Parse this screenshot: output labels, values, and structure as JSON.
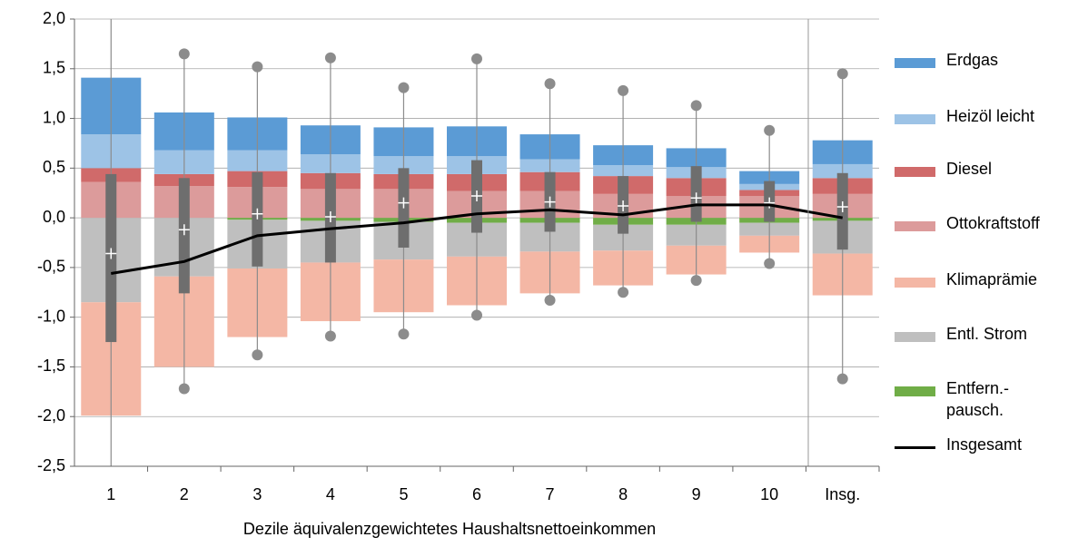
{
  "chart_data": {
    "type": "bar",
    "stacked": true,
    "xlabel": "Dezile äquivalenzgewichtetes Haushaltsnettoeinkommen",
    "categories": [
      "1",
      "2",
      "3",
      "4",
      "5",
      "6",
      "7",
      "8",
      "9",
      "10",
      "Insg."
    ],
    "series": [
      {
        "name": "Erdgas",
        "color": "#5b9bd5",
        "values": [
          0.57,
          0.38,
          0.33,
          0.29,
          0.29,
          0.3,
          0.25,
          0.2,
          0.19,
          0.13,
          0.24
        ]
      },
      {
        "name": "Heizöl leicht",
        "color": "#9dc3e6",
        "values": [
          0.34,
          0.24,
          0.21,
          0.19,
          0.18,
          0.18,
          0.13,
          0.11,
          0.11,
          0.06,
          0.14
        ]
      },
      {
        "name": "Diesel",
        "color": "#d06a6a",
        "values": [
          0.14,
          0.12,
          0.16,
          0.16,
          0.15,
          0.17,
          0.19,
          0.18,
          0.18,
          0.06,
          0.16
        ]
      },
      {
        "name": "Ottokraftstoff",
        "color": "#dc9b9b",
        "values": [
          0.36,
          0.32,
          0.31,
          0.29,
          0.29,
          0.27,
          0.27,
          0.24,
          0.22,
          0.22,
          0.24
        ]
      },
      {
        "name": "Klimaprämie",
        "color": "#f4b7a5",
        "values": [
          -1.14,
          -0.91,
          -0.69,
          -0.59,
          -0.53,
          -0.49,
          -0.42,
          -0.35,
          -0.29,
          -0.17,
          -0.42
        ]
      },
      {
        "name": "Entl. Strom",
        "color": "#bfbfbf",
        "values": [
          -0.85,
          -0.59,
          -0.49,
          -0.42,
          -0.38,
          -0.34,
          -0.29,
          -0.26,
          -0.21,
          -0.13,
          -0.33
        ]
      },
      {
        "name": "Entfern.-pausch.",
        "color": "#70ad47",
        "values": [
          0,
          0,
          -0.02,
          -0.03,
          -0.04,
          -0.05,
          -0.05,
          -0.07,
          -0.07,
          -0.05,
          -0.03
        ]
      },
      {
        "name": "Insgesamt",
        "type": "line",
        "color": "#000000",
        "values": [
          -0.56,
          -0.44,
          -0.18,
          -0.11,
          -0.05,
          0.04,
          0.08,
          0.03,
          0.13,
          0.13,
          0.0
        ]
      }
    ],
    "boxes": {
      "q1": [
        -1.25,
        -0.76,
        -0.49,
        -0.45,
        -0.3,
        -0.15,
        -0.14,
        -0.16,
        -0.04,
        -0.04,
        -0.32
      ],
      "q3": [
        0.44,
        0.4,
        0.46,
        0.45,
        0.5,
        0.58,
        0.46,
        0.42,
        0.52,
        0.37,
        0.45
      ],
      "mean": [
        -0.36,
        -0.12,
        0.04,
        0.01,
        0.15,
        0.22,
        0.16,
        0.12,
        0.2,
        0.15,
        0.11
      ],
      "min": [
        -2.7,
        -1.72,
        -1.38,
        -1.19,
        -1.17,
        -0.98,
        -0.83,
        -0.75,
        -0.63,
        -0.46,
        -1.62
      ],
      "max": [
        2.2,
        1.65,
        1.52,
        1.61,
        1.31,
        1.6,
        1.35,
        1.28,
        1.13,
        0.88,
        1.45
      ]
    },
    "ylim": [
      -2.5,
      2.0
    ],
    "yticks": [
      {
        "value": -2.5,
        "label": "-2,5"
      },
      {
        "value": -2.0,
        "label": "-2,0"
      },
      {
        "value": -1.5,
        "label": "-1,5"
      },
      {
        "value": -1.0,
        "label": "-1,0"
      },
      {
        "value": -0.5,
        "label": "-0,5"
      },
      {
        "value": 0.0,
        "label": "0,0"
      },
      {
        "value": 0.5,
        "label": "0,5"
      },
      {
        "value": 1.0,
        "label": "1,0"
      },
      {
        "value": 1.5,
        "label": "1,5"
      },
      {
        "value": 2.0,
        "label": "2,0"
      }
    ],
    "grid": true
  }
}
